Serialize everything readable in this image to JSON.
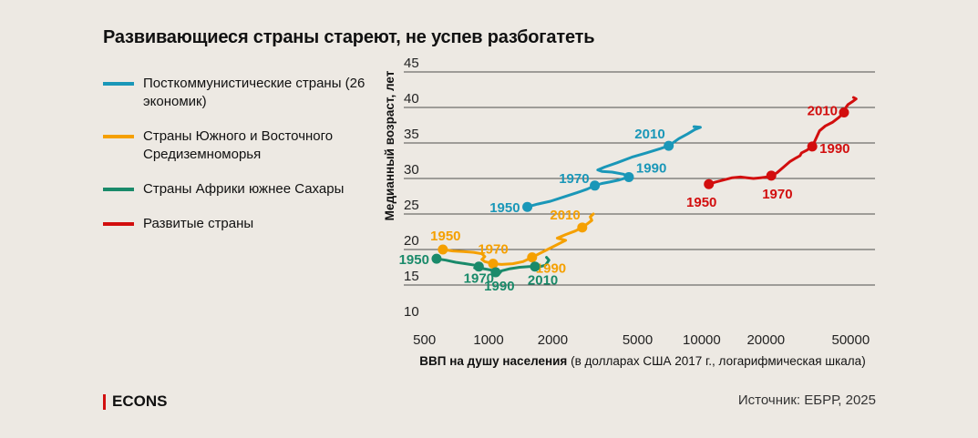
{
  "title": "Развивающиеся страны стареют, не успев разбогатеть",
  "brand": "ECONS",
  "source": "Источник: ЕБРР, 2025",
  "chart_data": {
    "type": "line",
    "title": "Развивающиеся страны стареют, не успев разбогатеть",
    "xlabel_bold": "ВВП на душу населения",
    "xlabel_rest": " (в долларах США 2017 г., логарифмическая шкала)",
    "ylabel": "Медианный возраст, лет",
    "xscale": "log",
    "xlim": [
      400,
      65000
    ],
    "ylim": [
      10,
      45
    ],
    "xticks": [
      500,
      1000,
      2000,
      5000,
      10000,
      20000,
      50000
    ],
    "xtick_labels": [
      "500",
      "1000",
      "2000",
      "5000",
      "10000",
      "20000",
      "50000"
    ],
    "yticks": [
      10,
      15,
      20,
      25,
      30,
      35,
      40,
      45
    ],
    "ytick_labels": [
      "10",
      "15",
      "20",
      "25",
      "30",
      "35",
      "40",
      "45"
    ],
    "grid": true,
    "series": [
      {
        "name": "Посткоммунистические страны (26 экономик)",
        "color": "#1a97b8",
        "line": [
          [
            1520,
            26.0
          ],
          [
            1700,
            26.4
          ],
          [
            1950,
            26.8
          ],
          [
            2250,
            27.4
          ],
          [
            2600,
            28.0
          ],
          [
            2900,
            28.5
          ],
          [
            3150,
            29.0
          ],
          [
            3400,
            29.3
          ],
          [
            3700,
            29.5
          ],
          [
            4100,
            29.8
          ],
          [
            4550,
            30.2
          ],
          [
            4300,
            30.6
          ],
          [
            3800,
            30.9
          ],
          [
            3400,
            31.0
          ],
          [
            3250,
            31.2
          ],
          [
            3500,
            31.6
          ],
          [
            4000,
            32.2
          ],
          [
            4700,
            33.0
          ],
          [
            5500,
            33.6
          ],
          [
            6400,
            34.2
          ],
          [
            7000,
            34.6
          ],
          [
            7800,
            35.6
          ],
          [
            8600,
            36.3
          ],
          [
            9300,
            36.9
          ],
          [
            9850,
            37.2
          ],
          [
            9200,
            37.3
          ]
        ],
        "points": [
          {
            "x": 1520,
            "y": 26.0,
            "label": "1950"
          },
          {
            "x": 3150,
            "y": 29.0,
            "label": "1970"
          },
          {
            "x": 4550,
            "y": 30.2,
            "label": "1990"
          },
          {
            "x": 7000,
            "y": 34.6,
            "label": "2010"
          }
        ]
      },
      {
        "name": "Страны Южного и Восточного Средиземноморья",
        "color": "#f5a000",
        "line": [
          [
            610,
            20.0
          ],
          [
            680,
            19.8
          ],
          [
            760,
            19.7
          ],
          [
            850,
            19.6
          ],
          [
            930,
            19.4
          ],
          [
            960,
            19.0
          ],
          [
            930,
            18.6
          ],
          [
            960,
            18.3
          ],
          [
            1050,
            18.0
          ],
          [
            1150,
            17.9
          ],
          [
            1300,
            18.0
          ],
          [
            1450,
            18.3
          ],
          [
            1600,
            18.9
          ],
          [
            1750,
            19.5
          ],
          [
            1950,
            20.2
          ],
          [
            2200,
            21.0
          ],
          [
            2300,
            21.3
          ],
          [
            2100,
            21.6
          ],
          [
            2300,
            22.1
          ],
          [
            2550,
            22.6
          ],
          [
            2750,
            23.1
          ],
          [
            2900,
            23.6
          ],
          [
            3050,
            24.1
          ],
          [
            3000,
            24.6
          ],
          [
            3100,
            25.0
          ]
        ],
        "points": [
          {
            "x": 610,
            "y": 20.0,
            "label": "1950"
          },
          {
            "x": 1050,
            "y": 18.0,
            "label": "1970"
          },
          {
            "x": 1600,
            "y": 18.9,
            "label": "1990"
          },
          {
            "x": 2750,
            "y": 23.1,
            "label": "2010"
          }
        ]
      },
      {
        "name": "Страны Африки южнее Сахары",
        "color": "#1a8a6a",
        "line": [
          [
            570,
            18.7
          ],
          [
            630,
            18.5
          ],
          [
            700,
            18.2
          ],
          [
            780,
            18.0
          ],
          [
            860,
            17.8
          ],
          [
            900,
            17.6
          ],
          [
            860,
            17.4
          ],
          [
            950,
            17.3
          ],
          [
            1030,
            17.1
          ],
          [
            1080,
            16.8
          ],
          [
            1120,
            16.6
          ],
          [
            1150,
            17.0
          ],
          [
            1260,
            17.3
          ],
          [
            1400,
            17.5
          ],
          [
            1550,
            17.6
          ],
          [
            1650,
            17.6
          ],
          [
            1750,
            17.6
          ],
          [
            1850,
            17.8
          ],
          [
            1920,
            18.5
          ],
          [
            1870,
            18.9
          ]
        ],
        "points": [
          {
            "x": 570,
            "y": 18.7,
            "label": "1950"
          },
          {
            "x": 900,
            "y": 17.6,
            "label": "1970"
          },
          {
            "x": 1080,
            "y": 16.8,
            "label": "1990"
          },
          {
            "x": 1650,
            "y": 17.6,
            "label": "2010"
          }
        ]
      },
      {
        "name": "Развитые страны",
        "color": "#d20e0e",
        "line": [
          [
            10800,
            29.2
          ],
          [
            11600,
            29.5
          ],
          [
            12700,
            29.8
          ],
          [
            13900,
            30.1
          ],
          [
            15200,
            30.2
          ],
          [
            16300,
            30.1
          ],
          [
            17500,
            30.0
          ],
          [
            18900,
            30.1
          ],
          [
            20200,
            30.2
          ],
          [
            21200,
            30.4
          ],
          [
            22500,
            30.8
          ],
          [
            24200,
            31.6
          ],
          [
            26000,
            32.4
          ],
          [
            27700,
            32.9
          ],
          [
            28900,
            33.2
          ],
          [
            29400,
            33.6
          ],
          [
            31200,
            34.0
          ],
          [
            33000,
            34.5
          ],
          [
            34200,
            35.5
          ],
          [
            35700,
            36.7
          ],
          [
            38000,
            37.4
          ],
          [
            41000,
            37.9
          ],
          [
            44000,
            38.6
          ],
          [
            46500,
            39.3
          ],
          [
            47500,
            40.0
          ],
          [
            48500,
            40.4
          ],
          [
            50800,
            40.8
          ],
          [
            53000,
            41.2
          ],
          [
            51500,
            41.4
          ]
        ],
        "points": [
          {
            "x": 10800,
            "y": 29.2,
            "label": "1950"
          },
          {
            "x": 21200,
            "y": 30.4,
            "label": "1970"
          },
          {
            "x": 33000,
            "y": 34.5,
            "label": "1990"
          },
          {
            "x": 46500,
            "y": 39.3,
            "label": "2010"
          }
        ]
      }
    ]
  }
}
